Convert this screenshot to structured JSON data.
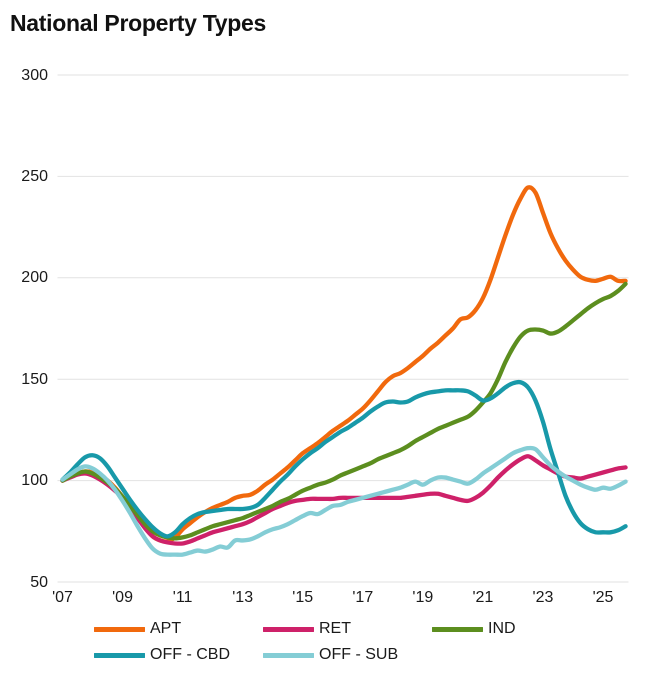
{
  "header": {
    "title": "National Property Types"
  },
  "colors": {
    "background": "#ffffff",
    "grid": "#e2e2e2",
    "tick_text": "#1a1a1a",
    "title_text": "#111111"
  },
  "chart_data": {
    "type": "line",
    "title": "National Property Types",
    "x_start": 2007,
    "x_step": 0.25,
    "x_end": 2025.75,
    "xlim": [
      2007,
      2025.9
    ],
    "ylim": [
      50,
      300
    ],
    "y_ticks": [
      300,
      250,
      200,
      150,
      100,
      50
    ],
    "x_ticks": [
      {
        "year": 2007,
        "label": "'07"
      },
      {
        "year": 2009,
        "label": "'09"
      },
      {
        "year": 2011,
        "label": "'11"
      },
      {
        "year": 2013,
        "label": "'13"
      },
      {
        "year": 2015,
        "label": "'15"
      },
      {
        "year": 2017,
        "label": "'17"
      },
      {
        "year": 2019,
        "label": "'19"
      },
      {
        "year": 2021,
        "label": "'21"
      },
      {
        "year": 2023,
        "label": "'23"
      },
      {
        "year": 2025,
        "label": "'25"
      }
    ],
    "grid": "horizontal-light",
    "series": [
      {
        "name": "APT",
        "color": "#F1690D",
        "values": [
          100,
          102,
          103.5,
          104.5,
          104,
          102.5,
          100,
          96.5,
          92,
          87.5,
          83,
          77.5,
          72.5,
          70.5,
          70,
          72,
          76,
          79,
          82,
          84.5,
          86.5,
          88,
          89.5,
          91.5,
          92.5,
          93,
          95,
          98,
          100.5,
          103.5,
          106.5,
          110,
          113.5,
          116,
          118.5,
          121.5,
          124.5,
          127,
          129.5,
          132.5,
          135.5,
          139.5,
          144,
          148.5,
          151.5,
          153,
          155.5,
          158.5,
          161.5,
          165,
          168,
          171.5,
          175,
          179.5,
          180.5,
          184,
          190,
          199,
          210,
          221,
          231,
          239,
          244.5,
          242,
          232,
          222,
          214.5,
          208.5,
          204,
          200.5,
          199,
          198.5,
          199.5,
          200.5,
          198.5,
          198.5
        ]
      },
      {
        "name": "RET",
        "color": "#CE2169",
        "values": [
          100,
          101.5,
          103,
          103.5,
          102.5,
          100.5,
          98,
          95,
          91.5,
          86.5,
          81.5,
          76.5,
          72.5,
          70.5,
          69.5,
          69,
          69,
          70,
          71.5,
          73,
          74.5,
          75.5,
          76.5,
          77.5,
          78.5,
          80,
          82,
          84,
          86,
          87.5,
          89,
          90,
          90.5,
          91,
          91,
          91,
          91,
          91.5,
          91.5,
          91.5,
          91.5,
          91.5,
          91.5,
          91.5,
          91.5,
          91.5,
          92,
          92.5,
          93,
          93.5,
          93.5,
          92.5,
          91.5,
          90.5,
          90,
          91.5,
          94,
          97.5,
          101.5,
          105,
          108,
          110.5,
          112,
          110,
          107.5,
          105.5,
          103.5,
          102,
          101.5,
          101,
          102,
          103,
          104,
          105,
          106,
          106.5
        ]
      },
      {
        "name": "IND",
        "color": "#5C8E1F",
        "values": [
          100,
          102,
          103.5,
          104.5,
          103.5,
          101.5,
          99,
          96,
          92,
          87.5,
          83,
          78.5,
          75,
          73,
          72,
          71.5,
          72,
          73,
          74.5,
          76,
          77.5,
          78.5,
          79.5,
          80.5,
          81.5,
          83,
          84.5,
          86,
          87.5,
          89.5,
          91,
          93,
          95,
          96.5,
          98,
          99,
          100.5,
          102.5,
          104,
          105.5,
          107,
          108.5,
          110.5,
          112,
          113.5,
          115,
          117,
          119.5,
          121.5,
          123.5,
          125.5,
          127,
          128.5,
          130,
          131.5,
          134.5,
          138.5,
          143,
          150,
          158.5,
          165.5,
          171,
          174,
          174.5,
          174,
          172.5,
          173.5,
          176,
          179,
          182,
          185,
          187.5,
          189.5,
          191,
          193.5,
          197
        ]
      },
      {
        "name": "OFF - CBD",
        "color": "#1899A9",
        "values": [
          100.5,
          104,
          108,
          111.5,
          112.5,
          111,
          107,
          101.5,
          96,
          90.5,
          85.5,
          81,
          77,
          74,
          72.5,
          74.5,
          78.5,
          81.5,
          83.5,
          84.5,
          85,
          85.5,
          86,
          86,
          86,
          86.5,
          88,
          91.5,
          95.5,
          99.5,
          103,
          107,
          110.5,
          113.5,
          116,
          119,
          121.5,
          124,
          126,
          128.5,
          131,
          134,
          136.5,
          138.5,
          139,
          138.5,
          139,
          141,
          142.5,
          143.5,
          144,
          144.5,
          144.5,
          144.5,
          144,
          142,
          139.5,
          140.5,
          143,
          146,
          148,
          148.5,
          146,
          139.5,
          129,
          115.5,
          104,
          92.5,
          84.5,
          79,
          76,
          74.5,
          74.5,
          74.5,
          75.5,
          77.5
        ]
      },
      {
        "name": "OFF - SUB",
        "color": "#84CDD5",
        "values": [
          100.5,
          103,
          105.5,
          107,
          106,
          103.5,
          100,
          95.5,
          90,
          84,
          77.5,
          71.5,
          66.5,
          64,
          63.5,
          63.5,
          63.5,
          64.5,
          65.5,
          65,
          66,
          67.5,
          67,
          70.5,
          70.5,
          71,
          72.5,
          74.5,
          76,
          77,
          78.5,
          80.5,
          82.5,
          84,
          83.5,
          85.5,
          87.5,
          88,
          89.5,
          90.5,
          91.5,
          92.5,
          93.5,
          94.5,
          95.5,
          96.5,
          98,
          99.5,
          98,
          100,
          101.5,
          101.5,
          100.5,
          99.5,
          98.5,
          100.5,
          103.5,
          106,
          108.5,
          111,
          113.5,
          115,
          116,
          115.5,
          111.5,
          107.5,
          104.5,
          102,
          100,
          98,
          96.5,
          95.5,
          96.5,
          96,
          97.5,
          99.5
        ]
      }
    ],
    "legend": {
      "position": "bottom",
      "rows": [
        [
          "APT",
          "RET",
          "IND"
        ],
        [
          "OFF - CBD",
          "OFF - SUB"
        ]
      ]
    }
  }
}
